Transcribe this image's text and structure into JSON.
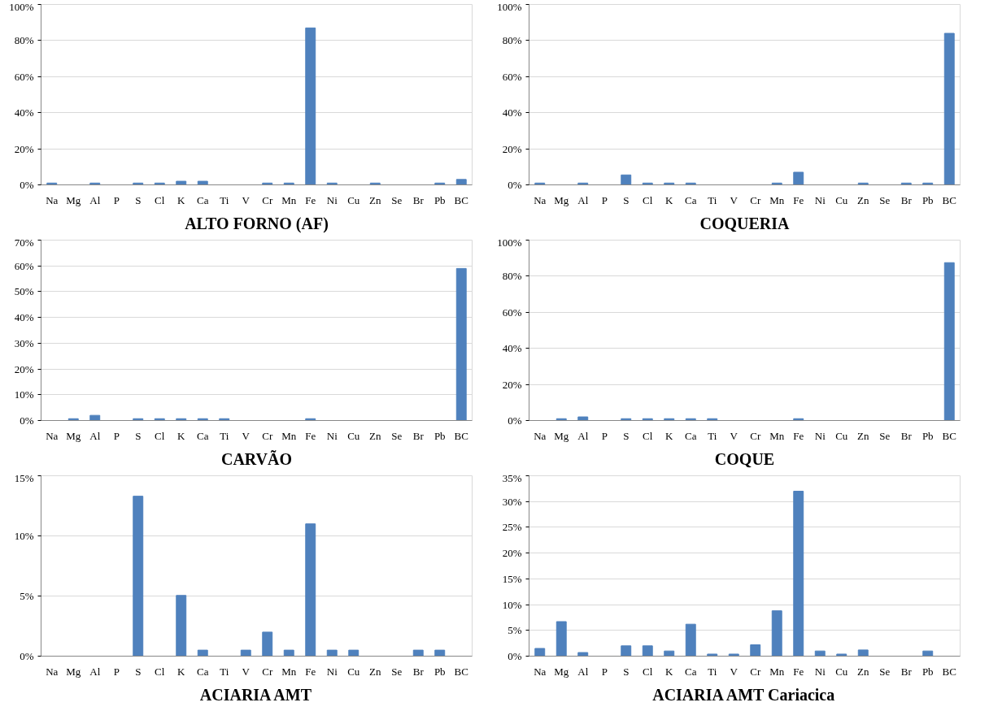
{
  "chart_data": [
    {
      "type": "bar",
      "title": "ALTO FORNO (AF)",
      "categories": [
        "Na",
        "Mg",
        "Al",
        "P",
        "S",
        "Cl",
        "K",
        "Ca",
        "Ti",
        "V",
        "Cr",
        "Mn",
        "Fe",
        "Ni",
        "Cu",
        "Zn",
        "Se",
        "Br",
        "Pb",
        "BC"
      ],
      "values": [
        1,
        0,
        1,
        0,
        1,
        1,
        2,
        2,
        0,
        0,
        1,
        1,
        87,
        1,
        0,
        1,
        0,
        0,
        1,
        3
      ],
      "color": "#4f81bd",
      "ylim": [
        0,
        100
      ],
      "yticks": [
        {
          "value": 0,
          "label": "0%"
        },
        {
          "value": 20,
          "label": "20%"
        },
        {
          "value": 40,
          "label": "40%"
        },
        {
          "value": 60,
          "label": "60%"
        },
        {
          "value": 80,
          "label": "80%"
        },
        {
          "value": 100,
          "label": "100%"
        }
      ],
      "grid": "y"
    },
    {
      "type": "bar",
      "title": "COQUERIA",
      "categories": [
        "Na",
        "Mg",
        "Al",
        "P",
        "S",
        "Cl",
        "K",
        "Ca",
        "Ti",
        "V",
        "Cr",
        "Mn",
        "Fe",
        "Ni",
        "Cu",
        "Zn",
        "Se",
        "Br",
        "Pb",
        "BC"
      ],
      "values": [
        1,
        0,
        1,
        0,
        5.5,
        1,
        1,
        1,
        0,
        0,
        0,
        1,
        7,
        0,
        0,
        1,
        0,
        1,
        1,
        84
      ],
      "color": "#4f81bd",
      "ylim": [
        0,
        100
      ],
      "yticks": [
        {
          "value": 0,
          "label": "0%"
        },
        {
          "value": 20,
          "label": "20%"
        },
        {
          "value": 40,
          "label": "40%"
        },
        {
          "value": 60,
          "label": "60%"
        },
        {
          "value": 80,
          "label": "80%"
        },
        {
          "value": 100,
          "label": "100%"
        }
      ],
      "grid": "y"
    },
    {
      "type": "bar",
      "title": "CARVÃO",
      "categories": [
        "Na",
        "Mg",
        "Al",
        "P",
        "S",
        "Cl",
        "K",
        "Ca",
        "Ti",
        "V",
        "Cr",
        "Mn",
        "Fe",
        "Ni",
        "Cu",
        "Zn",
        "Se",
        "Br",
        "Pb",
        "BC"
      ],
      "values": [
        0,
        0.7,
        2,
        0,
        0.7,
        0.7,
        0.7,
        0.7,
        0.7,
        0,
        0,
        0,
        0.7,
        0,
        0,
        0,
        0,
        0,
        0,
        59
      ],
      "color": "#4f81bd",
      "ylim": [
        0,
        70
      ],
      "yticks": [
        {
          "value": 0,
          "label": "0%"
        },
        {
          "value": 10,
          "label": "10%"
        },
        {
          "value": 20,
          "label": "20%"
        },
        {
          "value": 30,
          "label": "30%"
        },
        {
          "value": 40,
          "label": "40%"
        },
        {
          "value": 50,
          "label": "50%"
        },
        {
          "value": 60,
          "label": "60%"
        },
        {
          "value": 70,
          "label": "70%"
        }
      ],
      "grid": "y"
    },
    {
      "type": "bar",
      "title": "COQUE",
      "categories": [
        "Na",
        "Mg",
        "Al",
        "P",
        "S",
        "Cl",
        "K",
        "Ca",
        "Ti",
        "V",
        "Cr",
        "Mn",
        "Fe",
        "Ni",
        "Cu",
        "Zn",
        "Se",
        "Br",
        "Pb",
        "BC"
      ],
      "values": [
        0,
        1,
        2,
        0,
        1,
        1,
        1,
        1,
        1,
        0,
        0,
        0,
        1,
        0,
        0,
        0,
        0,
        0,
        0,
        87.5
      ],
      "color": "#4f81bd",
      "ylim": [
        0,
        100
      ],
      "yticks": [
        {
          "value": 0,
          "label": "0%"
        },
        {
          "value": 20,
          "label": "20%"
        },
        {
          "value": 40,
          "label": "40%"
        },
        {
          "value": 60,
          "label": "60%"
        },
        {
          "value": 80,
          "label": "80%"
        },
        {
          "value": 100,
          "label": "100%"
        }
      ],
      "grid": "y"
    },
    {
      "type": "bar",
      "title": "ACIARIA AMT",
      "categories": [
        "Na",
        "Mg",
        "Al",
        "P",
        "S",
        "Cl",
        "K",
        "Ca",
        "Ti",
        "V",
        "Cr",
        "Mn",
        "Fe",
        "Ni",
        "Cu",
        "Zn",
        "Se",
        "Br",
        "Pb",
        "BC"
      ],
      "values": [
        0,
        0,
        0,
        0,
        13.3,
        0,
        5.05,
        0.5,
        0,
        0.5,
        2,
        0.5,
        11,
        0.5,
        0.5,
        0,
        0,
        0.5,
        0.5,
        0
      ],
      "color": "#4f81bd",
      "ylim": [
        0,
        15
      ],
      "yticks": [
        {
          "value": 0,
          "label": "0%"
        },
        {
          "value": 5,
          "label": "5%"
        },
        {
          "value": 10,
          "label": "10%"
        },
        {
          "value": 15,
          "label": "15%"
        }
      ],
      "grid": "y"
    },
    {
      "type": "bar",
      "title": "ACIARIA AMT Cariacica",
      "categories": [
        "Na",
        "Mg",
        "Al",
        "P",
        "S",
        "Cl",
        "K",
        "Ca",
        "Ti",
        "V",
        "Cr",
        "Mn",
        "Fe",
        "Ni",
        "Cu",
        "Zn",
        "Se",
        "Br",
        "Pb",
        "BC"
      ],
      "values": [
        1.5,
        6.7,
        0.7,
        0,
        2,
        2,
        1,
        6.2,
        0.4,
        0.4,
        2.2,
        8.8,
        32,
        1,
        0.4,
        1.2,
        0,
        0,
        1,
        0
      ],
      "color": "#4f81bd",
      "ylim": [
        0,
        35
      ],
      "yticks": [
        {
          "value": 0,
          "label": "0%"
        },
        {
          "value": 5,
          "label": "5%"
        },
        {
          "value": 10,
          "label": "10%"
        },
        {
          "value": 15,
          "label": "15%"
        },
        {
          "value": 20,
          "label": "20%"
        },
        {
          "value": 25,
          "label": "25%"
        },
        {
          "value": 30,
          "label": "30%"
        },
        {
          "value": 35,
          "label": "35%"
        }
      ],
      "grid": "y"
    }
  ]
}
